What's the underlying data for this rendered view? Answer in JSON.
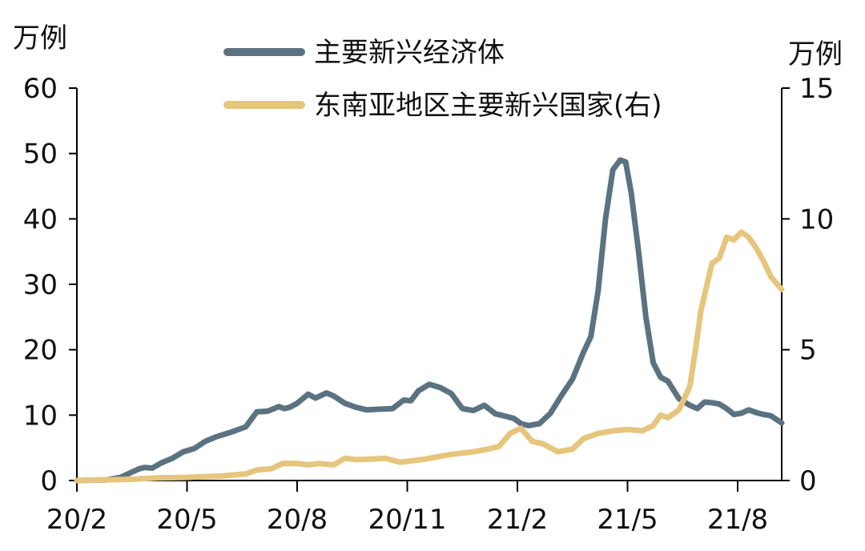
{
  "chart_data": {
    "type": "line",
    "title": "",
    "xlabel": "",
    "y_left": {
      "unit": "万例",
      "ylim": [
        0,
        60
      ],
      "ticks": [
        0,
        10,
        20,
        30,
        40,
        50,
        60
      ]
    },
    "y_right": {
      "unit": "万例",
      "ylim": [
        0,
        15
      ],
      "ticks": [
        0,
        5,
        10,
        15
      ]
    },
    "x_ticks": [
      "20/2",
      "20/5",
      "20/8",
      "20/11",
      "21/2",
      "21/5",
      "21/8"
    ],
    "x_tick_months": [
      0,
      3,
      6,
      9,
      12,
      15,
      18
    ],
    "x_range_months": [
      0,
      19.2
    ],
    "grid": false,
    "legend_position": "top-center",
    "series": [
      {
        "name": "主要新兴经济体",
        "axis": "left",
        "color": "#5b7381",
        "x": [
          0,
          0.8,
          1.2,
          1.5,
          1.7,
          1.85,
          2.05,
          2.3,
          2.6,
          2.9,
          3.2,
          3.5,
          3.8,
          4.2,
          4.6,
          4.9,
          5.2,
          5.5,
          5.65,
          5.8,
          6.0,
          6.3,
          6.5,
          6.8,
          7.0,
          7.3,
          7.6,
          7.9,
          8.2,
          8.6,
          8.9,
          9.1,
          9.3,
          9.6,
          9.9,
          10.2,
          10.5,
          10.8,
          11.1,
          11.4,
          11.7,
          11.9,
          12.1,
          12.3,
          12.6,
          12.9,
          13.2,
          13.5,
          13.8,
          14.0,
          14.2,
          14.4,
          14.6,
          14.8,
          14.95,
          15.1,
          15.3,
          15.5,
          15.7,
          15.9,
          16.1,
          16.4,
          16.7,
          16.9,
          17.1,
          17.3,
          17.5,
          17.7,
          17.9,
          18.1,
          18.3,
          18.5,
          18.7,
          18.9,
          19.2
        ],
        "values": [
          0,
          0.1,
          0.5,
          1.3,
          1.8,
          2.0,
          1.9,
          2.7,
          3.4,
          4.4,
          4.9,
          6.0,
          6.7,
          7.4,
          8.2,
          10.5,
          10.6,
          11.3,
          11.0,
          11.2,
          11.8,
          13.2,
          12.6,
          13.4,
          12.9,
          11.8,
          11.2,
          10.8,
          10.9,
          11.0,
          12.3,
          12.2,
          13.7,
          14.7,
          14.2,
          13.3,
          11.0,
          10.7,
          11.5,
          10.2,
          9.8,
          9.5,
          8.7,
          8.4,
          8.7,
          10.3,
          13.0,
          15.5,
          19.6,
          22.0,
          29.0,
          40.0,
          47.5,
          49.0,
          48.7,
          44.0,
          35.0,
          25.0,
          18.0,
          15.8,
          15.2,
          12.5,
          11.5,
          11.0,
          12.0,
          11.9,
          11.7,
          11.0,
          10.1,
          10.3,
          10.8,
          10.4,
          10.1,
          9.9,
          8.8
        ]
      },
      {
        "name": "东南亚地区主要新兴国家(右)",
        "axis": "right",
        "color": "#e6c57d",
        "x": [
          0,
          1.5,
          2.2,
          3.0,
          4.0,
          4.6,
          4.9,
          5.3,
          5.6,
          6.0,
          6.3,
          6.6,
          7.0,
          7.3,
          7.6,
          8.0,
          8.4,
          8.8,
          9.1,
          9.5,
          9.8,
          10.2,
          10.5,
          10.8,
          11.2,
          11.5,
          11.8,
          12.1,
          12.4,
          12.7,
          13.1,
          13.5,
          13.8,
          14.2,
          14.6,
          15.0,
          15.4,
          15.7,
          15.9,
          16.1,
          16.4,
          16.7,
          16.85,
          17.0,
          17.3,
          17.5,
          17.7,
          17.9,
          18.1,
          18.3,
          18.5,
          18.7,
          18.9,
          19.2
        ],
        "values": [
          0,
          0.05,
          0.1,
          0.12,
          0.18,
          0.25,
          0.4,
          0.45,
          0.65,
          0.65,
          0.6,
          0.65,
          0.6,
          0.85,
          0.8,
          0.82,
          0.85,
          0.7,
          0.75,
          0.82,
          0.9,
          1.0,
          1.05,
          1.1,
          1.2,
          1.3,
          1.8,
          2.0,
          1.5,
          1.4,
          1.1,
          1.2,
          1.6,
          1.8,
          1.9,
          1.95,
          1.9,
          2.1,
          2.5,
          2.4,
          2.7,
          3.6,
          5.0,
          6.5,
          8.3,
          8.5,
          9.3,
          9.2,
          9.5,
          9.3,
          8.9,
          8.4,
          7.8,
          7.3
        ]
      }
    ]
  }
}
